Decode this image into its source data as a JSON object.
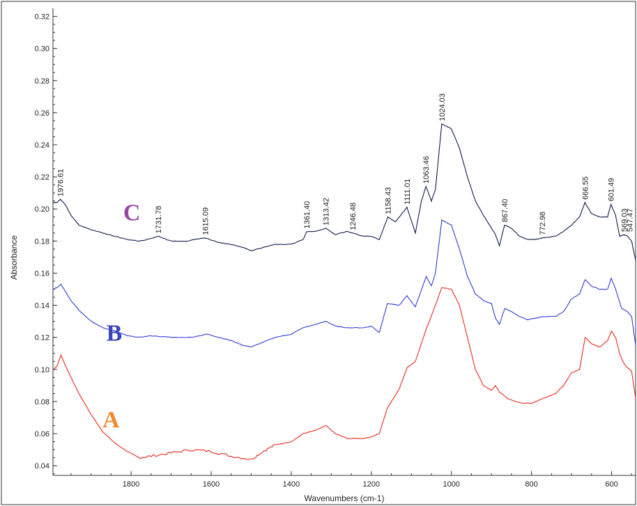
{
  "chart_data": {
    "type": "line",
    "xlabel": "Wavenumbers (cm-1)",
    "ylabel": "Absorbance",
    "xlim": [
      1995,
      540
    ],
    "ylim": [
      0.034,
      0.325
    ],
    "x_reversed": true,
    "xticks": [
      "1800",
      "1600",
      "1400",
      "1200",
      "1000",
      "800",
      "600"
    ],
    "yticks": [
      "0.04",
      "0.06",
      "0.08",
      "0.10",
      "0.12",
      "0.14",
      "0.16",
      "0.18",
      "0.20",
      "0.22",
      "0.24",
      "0.26",
      "0.28",
      "0.30",
      "0.32"
    ],
    "grid": false,
    "series": [
      {
        "name": "A",
        "color": "#e8281e",
        "label_color": "#f4862b",
        "label_pos": [
          1850,
          0.064
        ],
        "x": [
          1995,
          1985,
          1975,
          1965,
          1950,
          1930,
          1900,
          1870,
          1840,
          1810,
          1780,
          1750,
          1700,
          1650,
          1600,
          1550,
          1500,
          1470,
          1440,
          1400,
          1370,
          1340,
          1313,
          1290,
          1260,
          1220,
          1200,
          1180,
          1160,
          1130,
          1111,
          1090,
          1063,
          1040,
          1024,
          1000,
          980,
          960,
          940,
          920,
          900,
          890,
          880,
          860,
          840,
          820,
          800,
          780,
          760,
          740,
          720,
          700,
          680,
          666,
          650,
          630,
          610,
          600,
          590,
          580,
          570,
          560,
          550,
          540
        ],
        "y": [
          0.1,
          0.102,
          0.109,
          0.103,
          0.095,
          0.085,
          0.072,
          0.061,
          0.054,
          0.049,
          0.045,
          0.046,
          0.048,
          0.05,
          0.049,
          0.046,
          0.044,
          0.049,
          0.053,
          0.055,
          0.06,
          0.062,
          0.065,
          0.06,
          0.057,
          0.057,
          0.058,
          0.06,
          0.076,
          0.088,
          0.101,
          0.105,
          0.125,
          0.14,
          0.151,
          0.15,
          0.14,
          0.12,
          0.1,
          0.09,
          0.087,
          0.09,
          0.086,
          0.082,
          0.08,
          0.079,
          0.079,
          0.081,
          0.083,
          0.085,
          0.09,
          0.098,
          0.1,
          0.12,
          0.116,
          0.114,
          0.118,
          0.124,
          0.12,
          0.11,
          0.104,
          0.101,
          0.099,
          0.082
        ]
      },
      {
        "name": "B",
        "color": "#2f3bd0",
        "label_color": "#3a46b8",
        "label_pos": [
          1842,
          0.118
        ],
        "x": [
          1995,
          1985,
          1975,
          1965,
          1950,
          1930,
          1900,
          1870,
          1840,
          1810,
          1780,
          1750,
          1700,
          1650,
          1610,
          1580,
          1550,
          1520,
          1500,
          1470,
          1440,
          1400,
          1370,
          1340,
          1313,
          1290,
          1260,
          1220,
          1200,
          1180,
          1160,
          1130,
          1111,
          1090,
          1063,
          1050,
          1040,
          1024,
          1000,
          980,
          960,
          940,
          920,
          900,
          890,
          880,
          867,
          850,
          830,
          810,
          790,
          770,
          740,
          720,
          700,
          680,
          666,
          650,
          630,
          610,
          601,
          590,
          575,
          560,
          550,
          540
        ],
        "y": [
          0.15,
          0.151,
          0.153,
          0.149,
          0.143,
          0.137,
          0.13,
          0.126,
          0.124,
          0.121,
          0.12,
          0.121,
          0.12,
          0.12,
          0.122,
          0.12,
          0.118,
          0.115,
          0.114,
          0.117,
          0.12,
          0.122,
          0.126,
          0.128,
          0.13,
          0.127,
          0.126,
          0.126,
          0.127,
          0.123,
          0.141,
          0.14,
          0.146,
          0.139,
          0.158,
          0.152,
          0.16,
          0.193,
          0.19,
          0.175,
          0.158,
          0.147,
          0.143,
          0.141,
          0.132,
          0.128,
          0.138,
          0.136,
          0.133,
          0.131,
          0.132,
          0.133,
          0.133,
          0.136,
          0.144,
          0.147,
          0.156,
          0.152,
          0.15,
          0.15,
          0.157,
          0.15,
          0.138,
          0.136,
          0.133,
          0.115
        ]
      },
      {
        "name": "C",
        "color": "#111a4a",
        "label_color": "#9a45a8",
        "label_pos": [
          1798,
          0.193
        ],
        "x": [
          1995,
          1985,
          1976.61,
          1965,
          1950,
          1930,
          1900,
          1870,
          1840,
          1810,
          1780,
          1760,
          1731.78,
          1700,
          1660,
          1615.09,
          1580,
          1550,
          1520,
          1500,
          1470,
          1440,
          1400,
          1370,
          1361.4,
          1340,
          1313.42,
          1290,
          1260,
          1246.48,
          1220,
          1200,
          1180,
          1158.43,
          1140,
          1111.01,
          1090,
          1075,
          1063.46,
          1050,
          1040,
          1024.03,
          1000,
          980,
          960,
          940,
          920,
          900,
          890,
          880,
          867.4,
          850,
          830,
          810,
          790,
          772.98,
          740,
          720,
          700,
          680,
          666.55,
          650,
          630,
          610,
          601.49,
          590,
          580,
          569.03,
          560,
          550,
          540
        ],
        "y": [
          0.204,
          0.204,
          0.206,
          0.203,
          0.196,
          0.19,
          0.187,
          0.185,
          0.183,
          0.181,
          0.18,
          0.181,
          0.183,
          0.18,
          0.18,
          0.182,
          0.179,
          0.178,
          0.176,
          0.174,
          0.176,
          0.178,
          0.178,
          0.181,
          0.186,
          0.186,
          0.188,
          0.184,
          0.186,
          0.185,
          0.183,
          0.183,
          0.181,
          0.195,
          0.192,
          0.201,
          0.185,
          0.205,
          0.214,
          0.205,
          0.212,
          0.253,
          0.25,
          0.238,
          0.22,
          0.205,
          0.196,
          0.188,
          0.184,
          0.177,
          0.19,
          0.188,
          0.183,
          0.181,
          0.181,
          0.182,
          0.183,
          0.186,
          0.19,
          0.195,
          0.204,
          0.197,
          0.195,
          0.195,
          0.203,
          0.196,
          0.183,
          0.184,
          0.183,
          0.18,
          0.168
        ]
      }
    ],
    "peak_labels": [
      {
        "text": "1976.61",
        "x": 1976.61,
        "y": 0.206
      },
      {
        "text": "1731.78",
        "x": 1731.78,
        "y": 0.183
      },
      {
        "text": "1615.09",
        "x": 1615.09,
        "y": 0.182
      },
      {
        "text": "1361.40",
        "x": 1361.4,
        "y": 0.186
      },
      {
        "text": "1313.42",
        "x": 1313.42,
        "y": 0.188
      },
      {
        "text": "1246.48",
        "x": 1246.48,
        "y": 0.185
      },
      {
        "text": "1158.43",
        "x": 1158.43,
        "y": 0.195
      },
      {
        "text": "1111.01",
        "x": 1111.01,
        "y": 0.201
      },
      {
        "text": "1063.46",
        "x": 1063.46,
        "y": 0.214
      },
      {
        "text": "1024.03",
        "x": 1024.03,
        "y": 0.253
      },
      {
        "text": "867.40",
        "x": 867.4,
        "y": 0.19
      },
      {
        "text": "772.98",
        "x": 772.98,
        "y": 0.182
      },
      {
        "text": "666.55",
        "x": 666.55,
        "y": 0.204
      },
      {
        "text": "601.49",
        "x": 601.49,
        "y": 0.203
      },
      {
        "text": "569.03",
        "x": 569.03,
        "y": 0.184
      },
      {
        "text": "547.47",
        "x": 555.0,
        "y": 0.184
      }
    ]
  }
}
